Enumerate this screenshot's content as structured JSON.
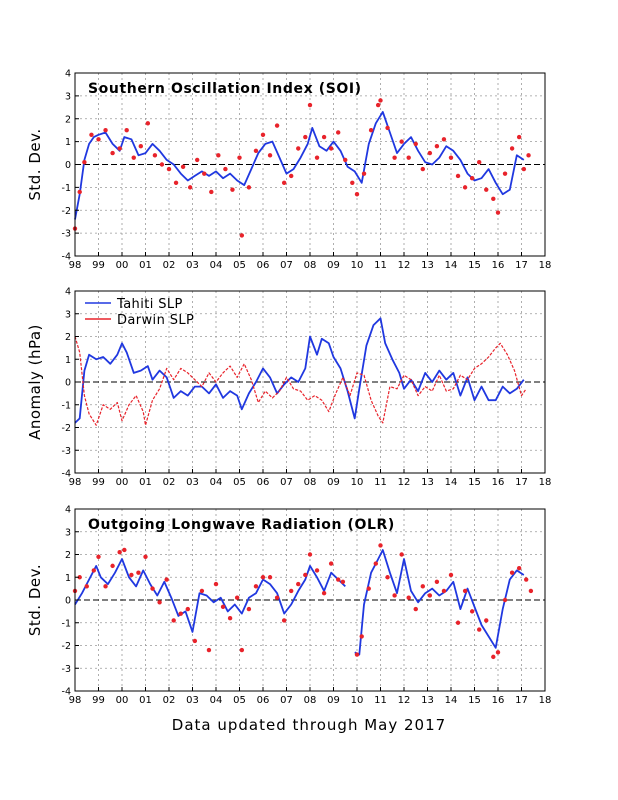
{
  "footer": "Data updated through May 2017",
  "colors": {
    "blue": "#2038e0",
    "red": "#e8232b",
    "grid": "#9a9a9a",
    "axis": "#000000"
  },
  "chart_data": [
    {
      "type": "line",
      "title": "Southern Oscillation Index (SOI)",
      "ylabel": "Std. Dev.",
      "xlabel": "",
      "xlim": [
        1998,
        2018
      ],
      "ylim": [
        -4,
        4
      ],
      "x_ticks": [
        "98",
        "99",
        "00",
        "01",
        "02",
        "03",
        "04",
        "05",
        "06",
        "07",
        "08",
        "09",
        "10",
        "11",
        "12",
        "13",
        "14",
        "15",
        "16",
        "17",
        "18"
      ],
      "y_ticks": [
        "-4",
        "-3",
        "-2",
        "-1",
        "0",
        "1",
        "2",
        "3",
        "4"
      ],
      "grid": true,
      "zero_line": true,
      "legend": "none",
      "series": [
        {
          "kind": "line",
          "color": "blue",
          "x": [
            1998.0,
            1998.2,
            1998.4,
            1998.6,
            1998.8,
            1999.0,
            1999.3,
            1999.6,
            1999.9,
            2000.1,
            2000.4,
            2000.7,
            2001.0,
            2001.3,
            2001.6,
            2001.9,
            2002.2,
            2002.5,
            2002.8,
            2003.1,
            2003.4,
            2003.7,
            2004.0,
            2004.3,
            2004.6,
            2004.9,
            2005.2,
            2005.5,
            2005.8,
            2006.1,
            2006.4,
            2006.7,
            2007.0,
            2007.3,
            2007.6,
            2007.9,
            2008.1,
            2008.4,
            2008.7,
            2009.0,
            2009.3,
            2009.6,
            2009.9,
            2010.2,
            2010.5,
            2010.8,
            2011.1,
            2011.4,
            2011.7,
            2012.0,
            2012.3,
            2012.6,
            2012.9,
            2013.2,
            2013.5,
            2013.8,
            2014.1,
            2014.4,
            2014.7,
            2015.0,
            2015.3,
            2015.6,
            2015.9,
            2016.2,
            2016.5,
            2016.8,
            2017.1
          ],
          "y": [
            -2.4,
            -1.3,
            0.2,
            0.9,
            1.2,
            1.3,
            1.4,
            0.9,
            0.6,
            1.2,
            1.1,
            0.4,
            0.5,
            0.9,
            0.6,
            0.2,
            0.0,
            -0.4,
            -0.7,
            -0.5,
            -0.3,
            -0.5,
            -0.3,
            -0.6,
            -0.4,
            -0.7,
            -0.9,
            -0.2,
            0.5,
            0.9,
            1.0,
            0.3,
            -0.4,
            -0.2,
            0.3,
            0.9,
            1.6,
            0.8,
            0.6,
            1.0,
            0.6,
            -0.1,
            -0.3,
            -0.8,
            0.9,
            1.8,
            2.3,
            1.4,
            0.5,
            0.9,
            1.2,
            0.6,
            0.1,
            0.0,
            0.3,
            0.8,
            0.6,
            0.2,
            -0.4,
            -0.7,
            -0.6,
            -0.2,
            -0.8,
            -1.3,
            -1.1,
            0.4,
            0.2
          ]
        },
        {
          "kind": "scatter",
          "color": "red",
          "x": [
            1998.0,
            1998.2,
            1998.4,
            1998.7,
            1999.0,
            1999.3,
            1999.6,
            1999.9,
            2000.2,
            2000.5,
            2000.8,
            2001.1,
            2001.4,
            2001.7,
            2002.0,
            2002.3,
            2002.6,
            2002.9,
            2003.2,
            2003.5,
            2003.8,
            2004.1,
            2004.4,
            2004.7,
            2005.0,
            2005.1,
            2005.4,
            2005.7,
            2006.0,
            2006.3,
            2006.6,
            2006.9,
            2007.2,
            2007.5,
            2007.8,
            2008.0,
            2008.3,
            2008.6,
            2008.9,
            2009.2,
            2009.5,
            2009.8,
            2010.0,
            2010.3,
            2010.6,
            2010.9,
            2011.0,
            2011.3,
            2011.6,
            2011.9,
            2012.2,
            2012.5,
            2012.8,
            2013.1,
            2013.4,
            2013.7,
            2014.0,
            2014.3,
            2014.6,
            2014.9,
            2015.2,
            2015.5,
            2015.8,
            2016.0,
            2016.3,
            2016.6,
            2016.9,
            2017.1,
            2017.3
          ],
          "y": [
            -2.8,
            -1.2,
            0.1,
            1.3,
            1.1,
            1.5,
            0.5,
            0.7,
            1.5,
            0.3,
            0.8,
            1.8,
            0.4,
            0.0,
            -0.2,
            -0.8,
            -0.1,
            -1.0,
            0.2,
            -0.4,
            -1.2,
            0.4,
            -0.2,
            -1.1,
            0.3,
            -3.1,
            -1.0,
            0.6,
            1.3,
            0.4,
            1.7,
            -0.8,
            -0.5,
            0.7,
            1.2,
            2.6,
            0.3,
            1.2,
            0.7,
            1.4,
            0.2,
            -0.8,
            -1.3,
            -0.4,
            1.5,
            2.6,
            2.8,
            1.6,
            0.3,
            1.0,
            0.3,
            0.9,
            -0.2,
            0.5,
            0.8,
            1.1,
            0.3,
            -0.5,
            -1.0,
            -0.6,
            0.1,
            -1.1,
            -1.5,
            -2.1,
            -0.4,
            0.7,
            1.2,
            -0.2,
            0.4
          ]
        }
      ]
    },
    {
      "type": "line",
      "title": "",
      "ylabel": "Anomaly (hPa)",
      "xlabel": "",
      "xlim": [
        1998,
        2018
      ],
      "ylim": [
        -4,
        4
      ],
      "x_ticks": [
        "98",
        "99",
        "00",
        "01",
        "02",
        "03",
        "04",
        "05",
        "06",
        "07",
        "08",
        "09",
        "10",
        "11",
        "12",
        "13",
        "14",
        "15",
        "16",
        "17",
        "18"
      ],
      "y_ticks": [
        "-4",
        "-3",
        "-2",
        "-1",
        "0",
        "1",
        "2",
        "3",
        "4"
      ],
      "grid": true,
      "zero_line": true,
      "legend": "top-left",
      "series": [
        {
          "name": "Tahiti SLP",
          "kind": "line",
          "color": "blue",
          "x": [
            1998.0,
            1998.2,
            1998.4,
            1998.6,
            1998.9,
            1999.2,
            1999.5,
            1999.8,
            2000.0,
            2000.2,
            2000.5,
            2000.8,
            2001.1,
            2001.3,
            2001.6,
            2001.9,
            2002.2,
            2002.5,
            2002.8,
            2003.1,
            2003.4,
            2003.7,
            2004.0,
            2004.3,
            2004.6,
            2004.9,
            2005.1,
            2005.4,
            2005.7,
            2006.0,
            2006.3,
            2006.6,
            2006.9,
            2007.2,
            2007.5,
            2007.8,
            2008.0,
            2008.3,
            2008.5,
            2008.8,
            2009.0,
            2009.3,
            2009.6,
            2009.9,
            2010.1,
            2010.4,
            2010.7,
            2011.0,
            2011.2,
            2011.5,
            2011.8,
            2012.0,
            2012.3,
            2012.6,
            2012.9,
            2013.2,
            2013.5,
            2013.8,
            2014.1,
            2014.4,
            2014.7,
            2015.0,
            2015.3,
            2015.6,
            2015.9,
            2016.2,
            2016.5,
            2016.8,
            2017.1
          ],
          "y": [
            -1.8,
            -1.6,
            0.5,
            1.2,
            1.0,
            1.1,
            0.8,
            1.2,
            1.7,
            1.3,
            0.4,
            0.5,
            0.7,
            0.1,
            0.5,
            0.2,
            -0.7,
            -0.4,
            -0.6,
            -0.2,
            -0.2,
            -0.5,
            -0.1,
            -0.7,
            -0.4,
            -0.6,
            -1.2,
            -0.5,
            0.0,
            0.6,
            0.2,
            -0.5,
            -0.1,
            0.2,
            0.0,
            0.6,
            2.0,
            1.2,
            1.9,
            1.7,
            1.1,
            0.6,
            -0.4,
            -1.6,
            -0.3,
            1.6,
            2.5,
            2.8,
            1.7,
            1.0,
            0.4,
            -0.3,
            0.1,
            -0.4,
            0.4,
            0.0,
            0.5,
            0.1,
            0.4,
            -0.6,
            0.2,
            -0.8,
            -0.2,
            -0.8,
            -0.8,
            -0.2,
            -0.5,
            -0.3,
            0.1
          ]
        },
        {
          "name": "Darwin SLP",
          "kind": "line",
          "color": "red",
          "x": [
            1998.0,
            1998.2,
            1998.4,
            1998.6,
            1998.9,
            1999.2,
            1999.5,
            1999.8,
            2000.0,
            2000.3,
            2000.6,
            2000.9,
            2001.0,
            2001.3,
            2001.6,
            2001.9,
            2002.2,
            2002.5,
            2002.8,
            2003.1,
            2003.4,
            2003.7,
            2004.0,
            2004.3,
            2004.6,
            2004.9,
            2005.2,
            2005.5,
            2005.8,
            2006.1,
            2006.4,
            2006.7,
            2007.0,
            2007.3,
            2007.6,
            2007.9,
            2008.2,
            2008.5,
            2008.8,
            2009.1,
            2009.4,
            2009.7,
            2010.0,
            2010.3,
            2010.6,
            2010.9,
            2011.1,
            2011.4,
            2011.7,
            2012.0,
            2012.3,
            2012.6,
            2012.9,
            2013.2,
            2013.5,
            2013.8,
            2014.1,
            2014.4,
            2014.7,
            2015.0,
            2015.3,
            2015.6,
            2015.9,
            2016.1,
            2016.4,
            2016.7,
            2017.0,
            2017.2
          ],
          "y": [
            2.0,
            1.3,
            -0.6,
            -1.4,
            -1.9,
            -1.0,
            -1.2,
            -0.9,
            -1.7,
            -1.0,
            -0.6,
            -1.3,
            -1.9,
            -0.8,
            -0.3,
            0.6,
            0.1,
            0.6,
            0.4,
            0.1,
            -0.2,
            0.4,
            0.0,
            0.4,
            0.7,
            0.2,
            0.8,
            0.1,
            -0.9,
            -0.4,
            -0.7,
            -0.4,
            0.2,
            -0.3,
            -0.4,
            -0.8,
            -0.6,
            -0.8,
            -1.3,
            -0.5,
            0.2,
            -0.6,
            0.4,
            0.3,
            -0.8,
            -1.5,
            -1.8,
            -0.2,
            -0.3,
            0.3,
            0.1,
            -0.6,
            -0.2,
            -0.4,
            0.3,
            -0.4,
            -0.3,
            0.3,
            0.1,
            0.6,
            0.8,
            1.1,
            1.5,
            1.7,
            1.2,
            0.5,
            -0.6,
            -0.3
          ]
        }
      ]
    },
    {
      "type": "line",
      "title": "Outgoing Longwave Radiation (OLR)",
      "ylabel": "Std. Dev.",
      "xlabel": "",
      "xlim": [
        1998,
        2018
      ],
      "ylim": [
        -4,
        4
      ],
      "x_ticks": [
        "98",
        "99",
        "00",
        "01",
        "02",
        "03",
        "04",
        "05",
        "06",
        "07",
        "08",
        "09",
        "10",
        "11",
        "12",
        "13",
        "14",
        "15",
        "16",
        "17",
        "18"
      ],
      "y_ticks": [
        "-4",
        "-3",
        "-2",
        "-1",
        "0",
        "1",
        "2",
        "3",
        "4"
      ],
      "grid": true,
      "zero_line": true,
      "legend": "none",
      "series": [
        {
          "kind": "line",
          "color": "blue",
          "x": [
            1998.0,
            1998.3,
            1998.6,
            1998.9,
            1999.1,
            1999.4,
            1999.7,
            2000.0,
            2000.3,
            2000.6,
            2000.9,
            2001.2,
            2001.5,
            2001.8,
            2002.1,
            2002.4,
            2002.7,
            2003.0,
            2003.3,
            2003.6,
            2003.9,
            2004.2,
            2004.5,
            2004.8,
            2005.1,
            2005.4,
            2005.7,
            2006.0,
            2006.3,
            2006.6,
            2006.9,
            2007.2,
            2007.5,
            2007.8,
            2008.0,
            2008.3,
            2008.6,
            2008.9,
            2009.2,
            2009.5
          ],
          "y": [
            -0.2,
            0.3,
            0.9,
            1.5,
            1.0,
            0.7,
            1.2,
            1.8,
            1.0,
            0.6,
            1.3,
            0.7,
            0.2,
            0.8,
            0.1,
            -0.7,
            -0.5,
            -1.4,
            0.3,
            0.2,
            -0.1,
            0.1,
            -0.5,
            -0.2,
            -0.6,
            0.1,
            0.3,
            0.9,
            0.7,
            0.3,
            -0.6,
            -0.2,
            0.4,
            0.9,
            1.5,
            1.0,
            0.4,
            1.2,
            0.9,
            0.6
          ]
        },
        {
          "kind": "line",
          "color": "blue",
          "x": [
            2009.9,
            2010.1,
            2010.3,
            2010.6,
            2010.9,
            2011.1,
            2011.4,
            2011.7,
            2012.0,
            2012.3,
            2012.6,
            2012.9,
            2013.2,
            2013.5,
            2013.8,
            2014.1,
            2014.4,
            2014.7,
            2015.0,
            2015.3,
            2015.6,
            2015.9,
            2016.2,
            2016.5,
            2016.8,
            2017.1
          ],
          "y": [
            -2.3,
            -2.4,
            -0.2,
            1.2,
            1.8,
            2.2,
            1.2,
            0.3,
            1.8,
            0.4,
            -0.1,
            0.3,
            0.5,
            0.2,
            0.4,
            0.8,
            -0.4,
            0.5,
            -0.3,
            -1.1,
            -1.6,
            -2.1,
            -0.4,
            0.9,
            1.3,
            1.1
          ]
        },
        {
          "kind": "scatter",
          "color": "red",
          "x": [
            1998.0,
            1998.2,
            1998.5,
            1998.8,
            1999.0,
            1999.3,
            1999.6,
            1999.9,
            2000.1,
            2000.4,
            2000.7,
            2001.0,
            2001.3,
            2001.6,
            2001.9,
            2002.2,
            2002.5,
            2002.8,
            2003.1,
            2003.4,
            2003.7,
            2004.0,
            2004.3,
            2004.6,
            2004.9,
            2005.1,
            2005.4,
            2005.7,
            2006.0,
            2006.3,
            2006.6,
            2006.9,
            2007.2,
            2007.5,
            2007.8,
            2008.0,
            2008.3,
            2008.6,
            2008.9,
            2009.2,
            2009.4,
            2010.0,
            2010.2,
            2010.5,
            2010.8,
            2011.0,
            2011.3,
            2011.6,
            2011.9,
            2012.2,
            2012.5,
            2012.8,
            2013.1,
            2013.4,
            2013.7,
            2014.0,
            2014.3,
            2014.6,
            2014.9,
            2015.2,
            2015.5,
            2015.8,
            2016.0,
            2016.3,
            2016.6,
            2016.9,
            2017.2,
            2017.4
          ],
          "y": [
            0.4,
            1.0,
            0.6,
            1.3,
            1.9,
            0.6,
            1.5,
            2.1,
            2.2,
            1.1,
            1.2,
            1.9,
            0.5,
            -0.1,
            0.9,
            -0.9,
            -0.6,
            -0.4,
            -1.8,
            0.4,
            -2.2,
            0.7,
            -0.3,
            -0.8,
            0.1,
            -2.2,
            -0.4,
            0.6,
            1.0,
            1.0,
            0.1,
            -0.9,
            0.4,
            0.7,
            1.1,
            2.0,
            1.3,
            0.3,
            1.6,
            0.9,
            0.8,
            -2.4,
            -1.6,
            0.5,
            1.6,
            2.4,
            1.0,
            0.2,
            2.0,
            0.1,
            -0.4,
            0.6,
            0.2,
            0.8,
            0.4,
            1.1,
            -1.0,
            0.4,
            -0.5,
            -1.3,
            -0.9,
            -2.5,
            -2.3,
            0.0,
            1.2,
            1.4,
            0.9,
            0.4
          ]
        }
      ]
    }
  ]
}
